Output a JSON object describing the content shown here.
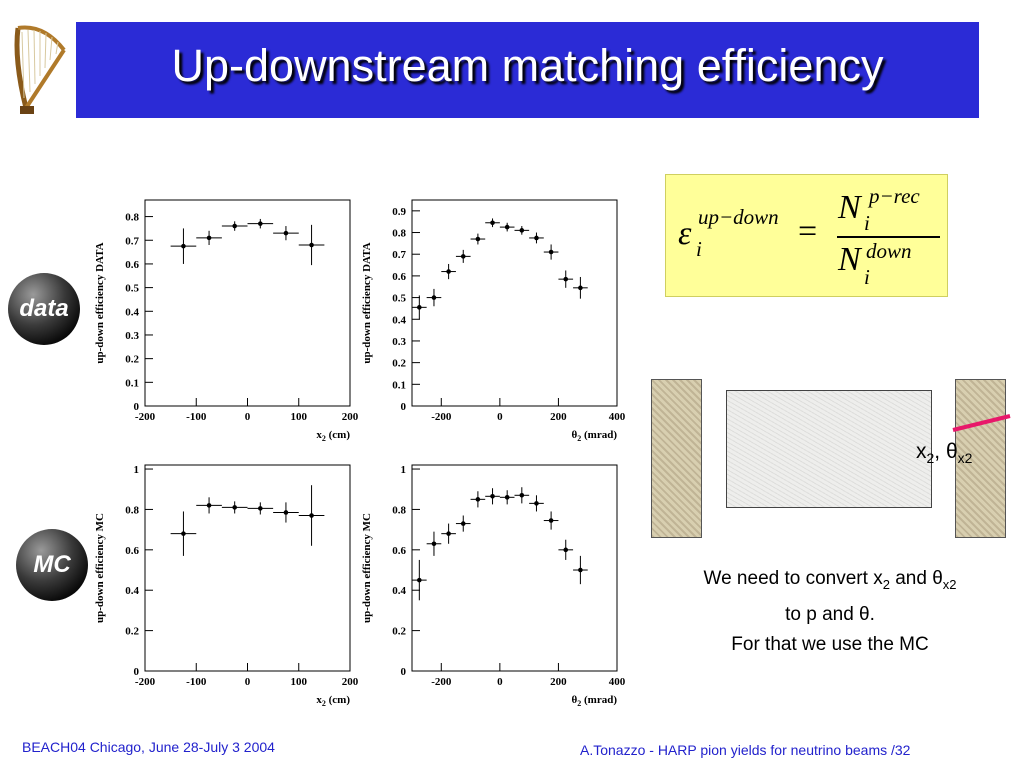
{
  "slide": {
    "title": "Up-downstream matching efficiency",
    "badges": {
      "data": "data",
      "mc": "MC"
    },
    "formula": {
      "lhs_symbol": "ε",
      "lhs_sub": "i",
      "lhs_sup": "up−down",
      "equals": "=",
      "num_symbol": "N",
      "num_sub": "i",
      "num_sup": "p−rec",
      "den_symbol": "N",
      "den_sub": "i",
      "den_sup": "down"
    },
    "diagram": {
      "x2_label": "x",
      "x2_sub": "2",
      "sep": ", ",
      "theta": "θ",
      "theta_sub": "x2"
    },
    "note": {
      "line1_a": "We need to convert x",
      "line1_sub": "2",
      "line1_b": " and θ",
      "line1_sub2": "x2",
      "line2": "to p and θ.",
      "line3": "For that we use the MC"
    },
    "footer": {
      "left": "BEACH04 Chicago, June 28-July 3 2004",
      "right": "A.Tonazzo - HARP pion yields for neutrino beams    /32"
    },
    "colors": {
      "title_bg": "#2b2bd6",
      "formula_bg": "#ffff99",
      "footer_text": "#2222cc",
      "track": "#e8186a"
    }
  },
  "chart_data": [
    {
      "type": "scatter",
      "ylabel": "up-down efficiency  DATA",
      "xlabel": "x",
      "xlabel_sub": "2",
      "xlabel_unit": " (cm)",
      "xlim": [
        -200,
        200
      ],
      "ylim": [
        0,
        0.87
      ],
      "xticks": [
        -200,
        -100,
        0,
        100,
        200
      ],
      "yticks": [
        0,
        0.1,
        0.2,
        0.3,
        0.4,
        0.5,
        0.6,
        0.7,
        0.8
      ],
      "ytick_labels": [
        "0",
        "0.1",
        "0.2",
        "0.3",
        "0.4",
        "0.5",
        "0.6",
        "0.7",
        "0.8"
      ],
      "series": [
        {
          "x": [
            -125,
            -75,
            -25,
            25,
            75,
            125
          ],
          "xerr": 25,
          "y": [
            0.675,
            0.71,
            0.76,
            0.77,
            0.73,
            0.68
          ],
          "yerr": [
            0.075,
            0.03,
            0.02,
            0.02,
            0.03,
            0.085
          ]
        }
      ]
    },
    {
      "type": "scatter",
      "ylabel": "up-down efficiency  DATA",
      "xlabel": "θ",
      "xlabel_sub": "2",
      "xlabel_unit": " (mrad)",
      "xlim": [
        -300,
        400
      ],
      "ylim": [
        0,
        0.95
      ],
      "xticks": [
        -200,
        0,
        200,
        400
      ],
      "yticks": [
        0,
        0.1,
        0.2,
        0.3,
        0.4,
        0.5,
        0.6,
        0.7,
        0.8,
        0.9
      ],
      "ytick_labels": [
        "0",
        "0.1",
        "0.2",
        "0.3",
        "0.4",
        "0.5",
        "0.6",
        "0.7",
        "0.8",
        "0.9"
      ],
      "series": [
        {
          "x": [
            -275,
            -225,
            -175,
            -125,
            -75,
            -25,
            25,
            75,
            125,
            175,
            225,
            275
          ],
          "xerr": 25,
          "y": [
            0.455,
            0.5,
            0.62,
            0.69,
            0.77,
            0.845,
            0.825,
            0.81,
            0.775,
            0.71,
            0.585,
            0.545
          ],
          "yerr": [
            0.055,
            0.04,
            0.035,
            0.03,
            0.025,
            0.02,
            0.02,
            0.02,
            0.025,
            0.035,
            0.04,
            0.05
          ]
        }
      ]
    },
    {
      "type": "scatter",
      "ylabel": "up-down efficiency  MC",
      "xlabel": "x",
      "xlabel_sub": "2",
      "xlabel_unit": " (cm)",
      "xlim": [
        -200,
        200
      ],
      "ylim": [
        0,
        1.02
      ],
      "xticks": [
        -200,
        -100,
        0,
        100,
        200
      ],
      "yticks": [
        0,
        0.2,
        0.4,
        0.6,
        0.8,
        1
      ],
      "ytick_labels": [
        "0",
        "0.2",
        "0.4",
        "0.6",
        "0.8",
        "1"
      ],
      "series": [
        {
          "x": [
            -125,
            -75,
            -25,
            25,
            75,
            125
          ],
          "xerr": 25,
          "y": [
            0.68,
            0.82,
            0.81,
            0.805,
            0.785,
            0.77
          ],
          "yerr": [
            0.11,
            0.04,
            0.03,
            0.03,
            0.05,
            0.15
          ]
        }
      ]
    },
    {
      "type": "scatter",
      "ylabel": "up-down efficiency  MC",
      "xlabel": "θ",
      "xlabel_sub": "2",
      "xlabel_unit": " (mrad)",
      "xlim": [
        -300,
        400
      ],
      "ylim": [
        0,
        1.02
      ],
      "xticks": [
        -200,
        0,
        200,
        400
      ],
      "yticks": [
        0,
        0.2,
        0.4,
        0.6,
        0.8,
        1
      ],
      "ytick_labels": [
        "0",
        "0.2",
        "0.4",
        "0.6",
        "0.8",
        "1"
      ],
      "series": [
        {
          "x": [
            -275,
            -225,
            -175,
            -125,
            -75,
            -25,
            25,
            75,
            125,
            175,
            225,
            275
          ],
          "xerr": 25,
          "y": [
            0.45,
            0.63,
            0.68,
            0.73,
            0.85,
            0.865,
            0.86,
            0.87,
            0.83,
            0.745,
            0.6,
            0.5
          ],
          "yerr": [
            0.1,
            0.06,
            0.05,
            0.04,
            0.04,
            0.04,
            0.035,
            0.04,
            0.04,
            0.045,
            0.05,
            0.07
          ]
        }
      ]
    }
  ]
}
